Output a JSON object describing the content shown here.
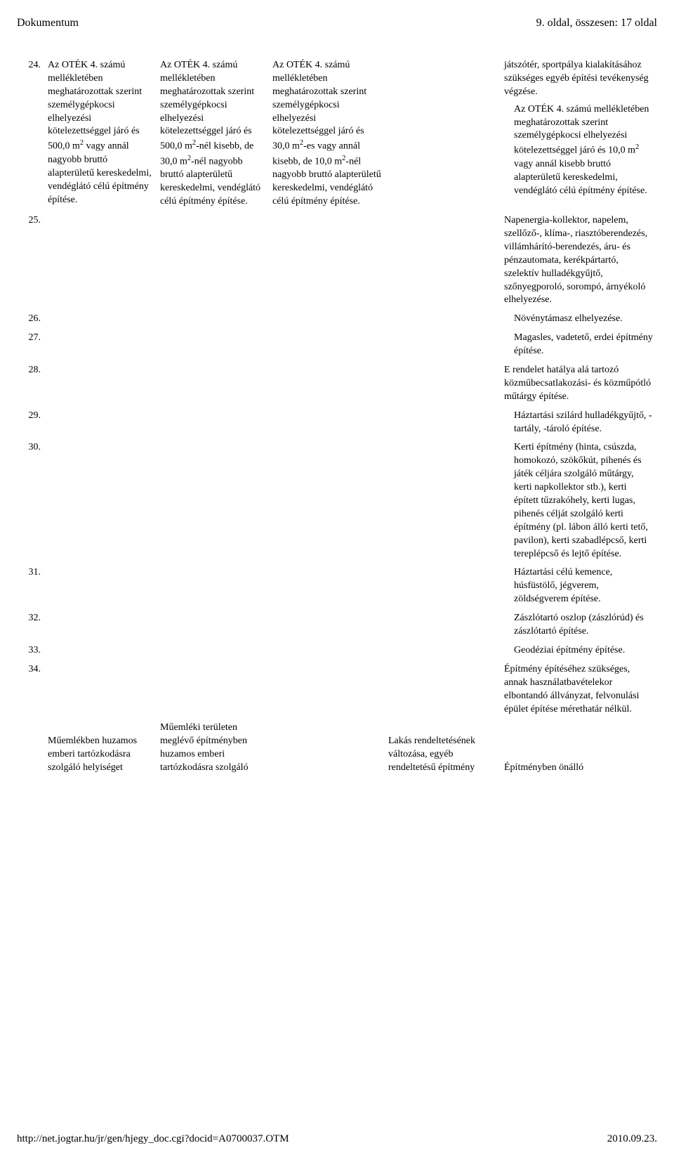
{
  "header": {
    "doc_title": "Dokumentum",
    "page_info": "9. oldal, összesen: 17 oldal"
  },
  "table": {
    "row24": {
      "num": "24.",
      "colA_html": "Az OTÉK 4. számú mellékletében meghatározottak szerint személygépkocsi elhelyezési kötelezettséggel járó és 500,0 m<sup>2</sup> vagy annál nagyobb bruttó alapterületű kereskedelmi, vendéglátó célú építmény építése.",
      "colB_html": "Az OTÉK 4. számú mellékletében meghatározottak szerint személygépkocsi elhelyezési kötelezettséggel járó és 500,0 m<sup>2</sup>-nél kisebb, de 30,0 m<sup>2</sup>-nél nagyobb bruttó alapterületű kereskedelmi, vendéglátó célú építmény építése.",
      "colC_html": "Az OTÉK 4. számú mellékletében meghatározottak szerint személygépkocsi elhelyezési kötelezettséggel járó és 30,0 m<sup>2</sup>-es vagy annál kisebb, de 10,0 m<sup>2</sup>-nél nagyobb bruttó alapterületű kereskedelmi, vendéglátó célú építmény építése.",
      "colE_pre": "játszótér, sportpálya kialakításához szükséges egyéb építési tevékenység végzése.",
      "colE_block_html": "Az OTÉK 4. számú mellékletében meghatározottak szerint személygépkocsi elhelyezési kötelezettséggel járó és 10,0 m<sup>2</sup> vagy annál kisebb bruttó alapterületű kereskedelmi, vendéglátó célú építmény építése."
    },
    "row25": {
      "num": "25.",
      "colE": "Napenergia-kollektor, napelem, szellőző-, klíma-, riasztóberendezés, villámhárító-berendezés, áru- és pénzautomata, kerékpártartó, szelektív hulladékgyűjtő, szőnyegporoló, sorompó, árnyékoló elhelyezése."
    },
    "row26": {
      "num": "26.",
      "colE": "Növénytámasz elhelyezése."
    },
    "row27": {
      "num": "27.",
      "colE": "Magasles, vadetető, erdei építmény építése."
    },
    "row28": {
      "num": "28.",
      "colE": "E rendelet hatálya alá tartozó közműbecsatlakozási- és közműpótló műtárgy építése."
    },
    "row29": {
      "num": "29.",
      "colE": "Háztartási szilárd hulladékgyűjtő, -tartály, -tároló építése."
    },
    "row30": {
      "num": "30.",
      "colE": "Kerti építmény (hinta, csúszda, homokozó, szökőkút, pihenés és játék céljára szolgáló műtárgy, kerti napkollektor stb.), kerti épített tűzrakóhely, kerti lugas, pihenés célját szolgáló kerti építmény (pl. lábon álló kerti tető, pavilon), kerti szabadlépcső, kerti tereplépcső és lejtő építése."
    },
    "row31": {
      "num": "31.",
      "colE": "Háztartási célú kemence, húsfüstölő, jégverem, zöldségverem építése."
    },
    "row32": {
      "num": "32.",
      "colE": "Zászlótartó oszlop (zászlórúd) és zászlótartó építése."
    },
    "row33": {
      "num": "33.",
      "colE": "Geodéziai építmény építése."
    },
    "row34": {
      "num": "34.",
      "colE": "Építmény építéséhez szükséges, annak használatbavételekor elbontandó állványzat, felvonulási épület építése mérethatár nélkül."
    },
    "bottom": {
      "colA": "Műemlékben huzamos emberi tartózkodásra szolgáló helyiséget",
      "colB": "Műemléki területen meglévő építményben huzamos emberi tartózkodásra szolgáló",
      "colD": "Lakás rendeltetésének változása, egyéb rendeltetésű építmény",
      "colE": "Építményben önálló"
    }
  },
  "footer": {
    "url": "http://net.jogtar.hu/jr/gen/hjegy_doc.cgi?docid=A0700037.OTM",
    "date": "2010.09.23."
  }
}
